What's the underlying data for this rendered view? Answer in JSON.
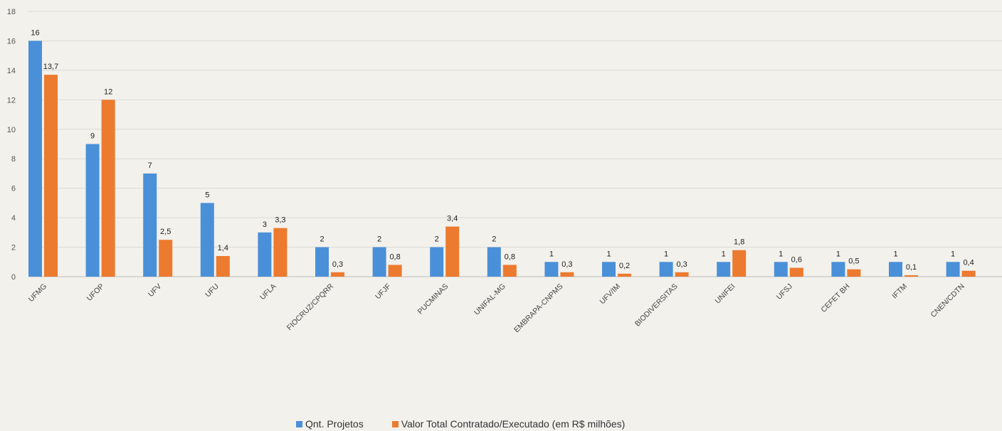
{
  "chart_data": {
    "type": "bar",
    "categories": [
      "UFMG",
      "UFOP",
      "UFV",
      "UFU",
      "UFLA",
      "FIOCRUZ/CPQRR",
      "UFJF",
      "PUCMINAS",
      "UNIFAL-MG",
      "EMBRAPA-CNPMS",
      "UFV/IM",
      "BIODIVERSITAS",
      "UNIFEI",
      "UFSJ",
      "CEFET BH",
      "IFTM",
      "CNEN/CDTN"
    ],
    "series": [
      {
        "name": "Qnt. Projetos",
        "color": "#4a90d9",
        "values": [
          16,
          9,
          7,
          5,
          3,
          2,
          2,
          2,
          2,
          1,
          1,
          1,
          1,
          1,
          1,
          1,
          1
        ],
        "labels": [
          "16",
          "9",
          "7",
          "5",
          "3",
          "2",
          "2",
          "2",
          "2",
          "1",
          "1",
          "1",
          "1",
          "1",
          "1",
          "1",
          "1"
        ]
      },
      {
        "name": "Valor Total Contratado/Executado (em R$ milhões)",
        "color": "#ec7a2f",
        "values": [
          13.7,
          12,
          2.5,
          1.4,
          3.3,
          0.3,
          0.8,
          3.4,
          0.8,
          0.3,
          0.2,
          0.3,
          1.8,
          0.6,
          0.5,
          0.1,
          0.4
        ],
        "labels": [
          "13,7",
          "12",
          "2,5",
          "1,4",
          "3,3",
          "0,3",
          "0,8",
          "3,4",
          "0,8",
          "0,3",
          "0,2",
          "0,3",
          "1,8",
          "0,6",
          "0,5",
          "0,1",
          "0,4"
        ]
      }
    ],
    "ylim": [
      0,
      18
    ],
    "yticks": [
      0,
      2,
      4,
      6,
      8,
      10,
      12,
      14,
      16,
      18
    ],
    "grid": true,
    "legend_position": "bottom"
  }
}
